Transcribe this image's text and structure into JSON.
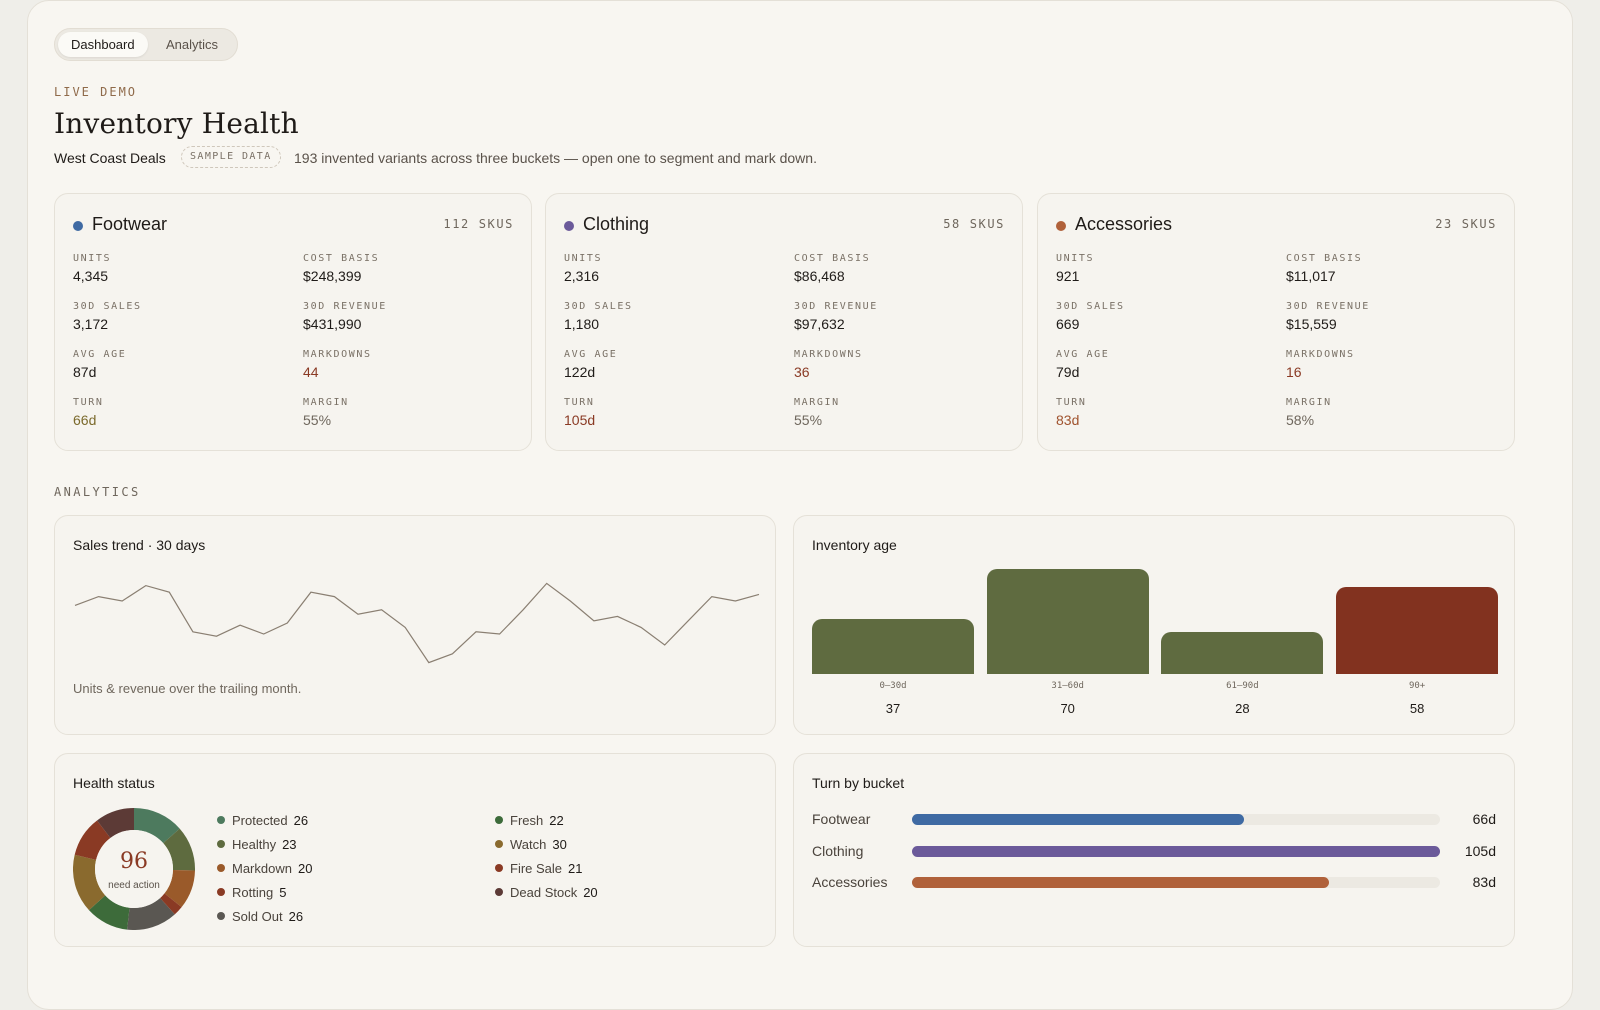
{
  "tabs": [
    {
      "label": "Dashboard",
      "active": true
    },
    {
      "label": "Analytics",
      "active": false
    }
  ],
  "header": {
    "eyebrow": "LIVE DEMO",
    "title": "Inventory Health",
    "store": "West Coast Deals",
    "pill": "SAMPLE DATA",
    "subtitle": "193 invented variants across three buckets — open one to segment and mark down."
  },
  "buckets": [
    {
      "name": "Footwear",
      "color": "#3f6aa3",
      "skus": "112 SKUS",
      "units_label": "UNITS",
      "units": "4,345",
      "cost_label": "COST BASIS",
      "cost": "$248,399",
      "sales_label": "30D SALES",
      "sales": "3,172",
      "revenue_label": "30D REVENUE",
      "revenue": "$431,990",
      "age_label": "AVG AGE",
      "age": "87d",
      "markdowns_label": "MARKDOWNS",
      "markdowns": "44",
      "turn_label": "TURN",
      "turn": "66d",
      "margin_label": "MARGIN",
      "margin": "55%",
      "turn_color": "#7b6a2c"
    },
    {
      "name": "Clothing",
      "color": "#6b5a9a",
      "skus": "58 SKUS",
      "units_label": "UNITS",
      "units": "2,316",
      "cost_label": "COST BASIS",
      "cost": "$86,468",
      "sales_label": "30D SALES",
      "sales": "1,180",
      "revenue_label": "30D REVENUE",
      "revenue": "$97,632",
      "age_label": "AVG AGE",
      "age": "122d",
      "markdowns_label": "MARKDOWNS",
      "markdowns": "36",
      "turn_label": "TURN",
      "turn": "105d",
      "margin_label": "MARGIN",
      "margin": "55%",
      "turn_color": "#8a3a24"
    },
    {
      "name": "Accessories",
      "color": "#b0613a",
      "skus": "23 SKUS",
      "units_label": "UNITS",
      "units": "921",
      "cost_label": "COST BASIS",
      "cost": "$11,017",
      "sales_label": "30D SALES",
      "sales": "669",
      "revenue_label": "30D REVENUE",
      "revenue": "$15,559",
      "age_label": "AVG AGE",
      "age": "79d",
      "markdowns_label": "MARKDOWNS",
      "markdowns": "16",
      "turn_label": "TURN",
      "turn": "83d",
      "margin_label": "MARGIN",
      "margin": "58%",
      "turn_color": "#a0532e"
    }
  ],
  "analytics": {
    "section_label": "ANALYTICS",
    "sales_trend": {
      "title": "Sales trend · 30 days",
      "note": "Units & revenue over the trailing month.",
      "color": "#8a7f72"
    },
    "inventory_age": {
      "title": "Inventory age"
    },
    "health_status": {
      "title": "Health status",
      "center_value": "96",
      "center_label": "need action",
      "legend": [
        {
          "label": "Protected",
          "value": "26",
          "color": "#4d7a5e"
        },
        {
          "label": "Healthy",
          "value": "23",
          "color": "#5e6b3f"
        },
        {
          "label": "Markdown",
          "value": "20",
          "color": "#9a5a2a"
        },
        {
          "label": "Rotting",
          "value": "5",
          "color": "#8a3a24"
        },
        {
          "label": "Sold Out",
          "value": "26",
          "color": "#5a5752"
        },
        {
          "label": "Fresh",
          "value": "22",
          "color": "#3d6b3a"
        },
        {
          "label": "Watch",
          "value": "30",
          "color": "#8a6a2e"
        },
        {
          "label": "Fire Sale",
          "value": "21",
          "color": "#8a3a24"
        },
        {
          "label": "Dead Stock",
          "value": "20",
          "color": "#5c3a36"
        }
      ]
    },
    "turn_by_bucket": {
      "title": "Turn by bucket",
      "max_days": 105,
      "rows": [
        {
          "label": "Footwear",
          "value": "66d",
          "days": 66,
          "color": "#3f6aa3"
        },
        {
          "label": "Clothing",
          "value": "105d",
          "days": 105,
          "color": "#6b5a9a"
        },
        {
          "label": "Accessories",
          "value": "83d",
          "days": 83,
          "color": "#b0613a"
        }
      ]
    }
  },
  "chart_data": [
    {
      "type": "line",
      "title": "Sales trend · 30 days",
      "x": [
        1,
        2,
        3,
        4,
        5,
        6,
        7,
        8,
        9,
        10,
        11,
        12,
        13,
        14,
        15,
        16,
        17,
        18,
        19,
        20,
        21,
        22,
        23,
        24,
        25,
        26,
        27,
        28,
        29,
        30
      ],
      "y": [
        58,
        62,
        60,
        67,
        64,
        46,
        44,
        49,
        45,
        50,
        64,
        62,
        54,
        56,
        48,
        32,
        36,
        46,
        45,
        56,
        68,
        60,
        51,
        53,
        48,
        40,
        51,
        62,
        60,
        63
      ],
      "ylim": [
        25,
        75
      ]
    },
    {
      "type": "bar",
      "title": "Inventory age",
      "categories": [
        "0–30d",
        "31–60d",
        "61–90d",
        "90+"
      ],
      "values": [
        37,
        70,
        28,
        58
      ],
      "colors": [
        "#5f6b40",
        "#5f6b40",
        "#5f6b40",
        "#82321f"
      ],
      "ylim": [
        0,
        70
      ]
    },
    {
      "type": "pie",
      "title": "Health status",
      "labels": [
        "Protected",
        "Healthy",
        "Markdown",
        "Rotting",
        "Sold Out",
        "Fresh",
        "Watch",
        "Fire Sale",
        "Dead Stock"
      ],
      "values": [
        26,
        23,
        20,
        5,
        26,
        22,
        30,
        21,
        20
      ],
      "colors": [
        "#4d7a5e",
        "#5e6b3f",
        "#9a5a2a",
        "#8a3a24",
        "#5a5752",
        "#3d6b3a",
        "#8a6a2e",
        "#8a3a24",
        "#5c3a36"
      ]
    },
    {
      "type": "bar",
      "title": "Turn by bucket",
      "categories": [
        "Footwear",
        "Clothing",
        "Accessories"
      ],
      "values": [
        66,
        105,
        83
      ],
      "ylabel": "d"
    }
  ]
}
